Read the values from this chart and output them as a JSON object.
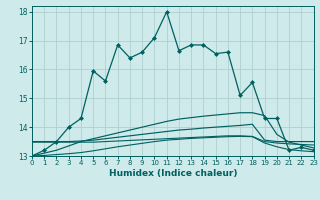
{
  "xlabel": "Humidex (Indice chaleur)",
  "background_color": "#ceeaea",
  "grid_color": "#b0d0d0",
  "line_color": "#006060",
  "xlim": [
    0,
    23
  ],
  "ylim": [
    13.0,
    18.2
  ],
  "xticks": [
    0,
    1,
    2,
    3,
    4,
    5,
    6,
    7,
    8,
    9,
    10,
    11,
    12,
    13,
    14,
    15,
    16,
    17,
    18,
    19,
    20,
    21,
    22,
    23
  ],
  "yticks": [
    13,
    14,
    15,
    16,
    17,
    18
  ],
  "line1_x": [
    0,
    1,
    2,
    3,
    4,
    5,
    6,
    7,
    8,
    9,
    10,
    11,
    12,
    13,
    14,
    15,
    16,
    17,
    18,
    19,
    20,
    21,
    22,
    23
  ],
  "line1_y": [
    13.0,
    13.2,
    13.5,
    14.0,
    14.3,
    15.95,
    15.6,
    16.85,
    16.4,
    16.6,
    17.1,
    18.0,
    16.65,
    16.85,
    16.85,
    16.55,
    16.6,
    15.1,
    15.55,
    14.3,
    14.3,
    13.2,
    13.3,
    13.2
  ],
  "line2_x": [
    0,
    2,
    3,
    4,
    5,
    6,
    7,
    8,
    9,
    10,
    11,
    12,
    13,
    14,
    15,
    16,
    17,
    18,
    19,
    20,
    21,
    22,
    23
  ],
  "line2_y": [
    13.5,
    13.5,
    13.5,
    13.52,
    13.55,
    13.6,
    13.65,
    13.7,
    13.75,
    13.8,
    13.85,
    13.9,
    13.93,
    13.97,
    14.0,
    14.03,
    14.06,
    14.1,
    13.55,
    13.5,
    13.5,
    13.5,
    13.5
  ],
  "line3_x": [
    0,
    1,
    2,
    3,
    4,
    5,
    6,
    7,
    8,
    9,
    10,
    11,
    12,
    13,
    14,
    15,
    16,
    17,
    18,
    19,
    20,
    21,
    22,
    23
  ],
  "line3_y": [
    13.0,
    13.1,
    13.2,
    13.35,
    13.5,
    13.6,
    13.7,
    13.8,
    13.9,
    14.0,
    14.1,
    14.2,
    14.28,
    14.33,
    14.38,
    14.42,
    14.46,
    14.5,
    14.5,
    14.4,
    13.75,
    13.48,
    13.38,
    13.28
  ],
  "line4_x": [
    0,
    1,
    2,
    3,
    4,
    5,
    6,
    7,
    8,
    9,
    10,
    11,
    12,
    13,
    14,
    15,
    16,
    17,
    18,
    19,
    20,
    21,
    22,
    23
  ],
  "line4_y": [
    13.48,
    13.48,
    13.48,
    13.48,
    13.48,
    13.48,
    13.5,
    13.52,
    13.54,
    13.56,
    13.58,
    13.6,
    13.62,
    13.64,
    13.66,
    13.68,
    13.7,
    13.7,
    13.68,
    13.5,
    13.45,
    13.42,
    13.4,
    13.38
  ],
  "line5_x": [
    0,
    1,
    2,
    3,
    4,
    5,
    6,
    7,
    8,
    9,
    10,
    11,
    12,
    13,
    14,
    15,
    16,
    17,
    18,
    19,
    20,
    21,
    22,
    23
  ],
  "line5_y": [
    13.0,
    13.02,
    13.05,
    13.08,
    13.12,
    13.18,
    13.25,
    13.32,
    13.38,
    13.44,
    13.5,
    13.55,
    13.58,
    13.61,
    13.63,
    13.65,
    13.67,
    13.68,
    13.67,
    13.45,
    13.32,
    13.22,
    13.18,
    13.15
  ]
}
